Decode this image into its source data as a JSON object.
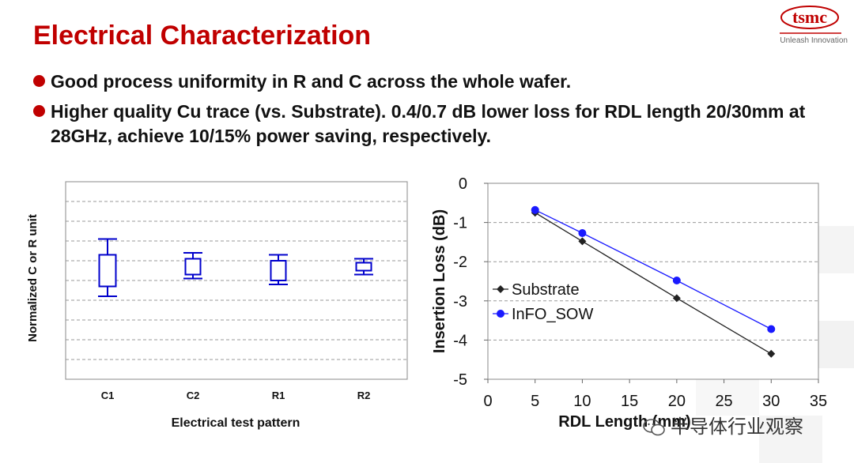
{
  "slide": {
    "title": "Electrical Characterization",
    "logo_text": "tsmc",
    "logo_tagline": "Unleash Innovation",
    "bullets": [
      "Good process uniformity in R and C across the whole wafer.",
      "Higher quality Cu trace (vs. Substrate). 0.4/0.7 dB lower loss for RDL length 20/30mm at 28GHz, achieve 10/15% power saving, respectively."
    ],
    "watermark": "半导体行业观察",
    "colors": {
      "title": "#c00000",
      "bullet": "#c00000",
      "box": "#0000cc",
      "substrate": "#222222",
      "info": "#1a1aff"
    }
  },
  "chart_data": [
    {
      "type": "box",
      "title": "",
      "xlabel": "Electrical test pattern",
      "ylabel": "Normalized C or R unit",
      "categories": [
        "C1",
        "C2",
        "R1",
        "R2"
      ],
      "boxes": [
        {
          "name": "C1",
          "whisker_low": 0.42,
          "q1": 0.47,
          "q3": 0.63,
          "whisker_high": 0.71
        },
        {
          "name": "C2",
          "whisker_low": 0.51,
          "q1": 0.53,
          "q3": 0.61,
          "whisker_high": 0.64
        },
        {
          "name": "R1",
          "whisker_low": 0.48,
          "q1": 0.5,
          "q3": 0.6,
          "whisker_high": 0.63
        },
        {
          "name": "R2",
          "whisker_low": 0.53,
          "q1": 0.55,
          "q3": 0.59,
          "whisker_high": 0.61
        }
      ],
      "ylim": [
        0,
        1
      ],
      "gridlines": 9,
      "grid": true
    },
    {
      "type": "line",
      "title": "",
      "xlabel": "RDL Length (mm)",
      "ylabel": "Insertion Loss (dB)",
      "xlim": [
        0,
        35
      ],
      "ylim": [
        -5,
        0
      ],
      "xticks": [
        0,
        5,
        10,
        15,
        20,
        25,
        30,
        35
      ],
      "yticks": [
        0,
        -1,
        -2,
        -3,
        -4,
        -5
      ],
      "legend_position": "center-left",
      "grid": true,
      "series": [
        {
          "name": "Substrate",
          "x": [
            5,
            10,
            20,
            30
          ],
          "y": [
            -0.75,
            -1.48,
            -2.93,
            -4.35
          ],
          "color": "#222222",
          "marker": "diamond"
        },
        {
          "name": "InFO_SOW",
          "x": [
            5,
            10,
            20,
            30
          ],
          "y": [
            -0.68,
            -1.27,
            -2.48,
            -3.72
          ],
          "color": "#1a1aff",
          "marker": "circle"
        }
      ]
    }
  ]
}
